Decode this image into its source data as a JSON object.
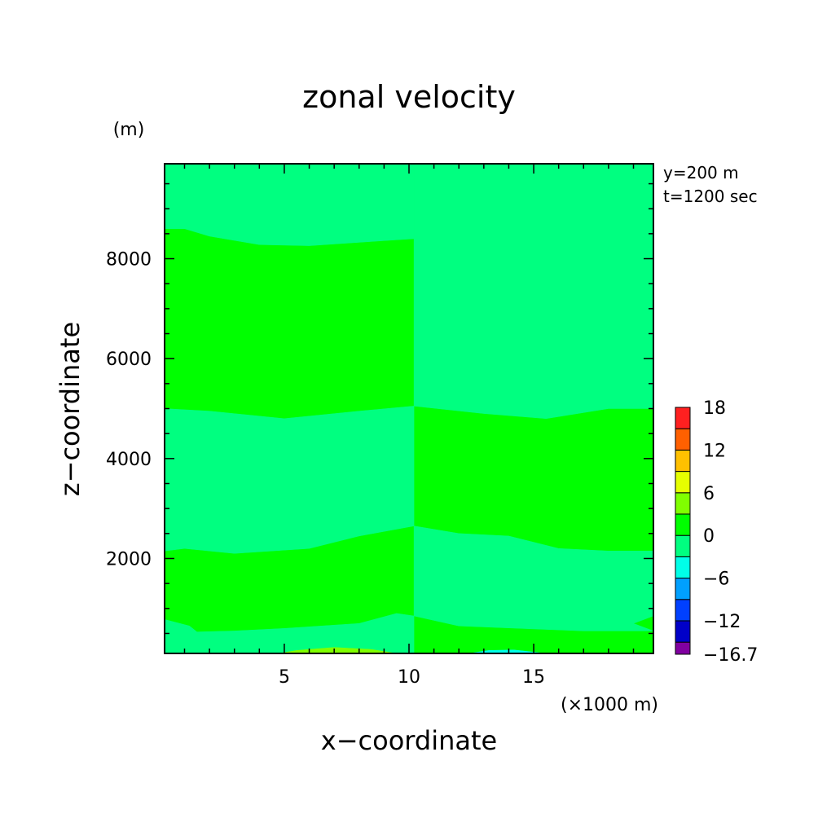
{
  "chart_data": {
    "type": "heatmap",
    "title": "zonal velocity",
    "xlabel": "x−coordinate",
    "ylabel": "z−coordinate",
    "x_unit": "(×1000 m)",
    "y_unit": "(m)",
    "annotations": [
      "y=200 m",
      "t=1200 sec"
    ],
    "xlim": [
      0.2,
      19.8
    ],
    "ylim": [
      100,
      9900
    ],
    "x_ticks": [
      "5",
      "10",
      "15"
    ],
    "y_ticks": [
      "2000",
      "4000",
      "6000",
      "8000"
    ],
    "x_tick_values": [
      5,
      10,
      15
    ],
    "y_tick_values": [
      2000,
      4000,
      6000,
      8000
    ],
    "colorbar": {
      "levels": [
        -16.7,
        -15,
        -12,
        -9,
        -6,
        -3,
        0,
        3,
        6,
        9,
        12,
        15,
        18
      ],
      "labels": [
        "18",
        "12",
        "6",
        "0",
        "−6",
        "−12",
        "−16.7"
      ],
      "label_values": [
        18,
        12,
        6,
        0,
        -6,
        -12,
        -16.7
      ],
      "colors": [
        "#8000a0",
        "#0000c8",
        "#0040ff",
        "#00a0ff",
        "#00ffe8",
        "#00ff80",
        "#00ff00",
        "#80ff00",
        "#e6ff00",
        "#ffc000",
        "#ff6000",
        "#ff2020"
      ]
    },
    "field": {
      "background_range": "0 to 3",
      "regions": [
        {
          "range": "-3 to 0",
          "points": [
            [
              0.2,
              9900
            ],
            [
              10.2,
              9900
            ],
            [
              10.2,
              8400
            ],
            [
              9,
              8360
            ],
            [
              6,
              8260
            ],
            [
              4,
              8280
            ],
            [
              2,
              8450
            ],
            [
              1,
              8600
            ],
            [
              0.2,
              8600
            ]
          ]
        },
        {
          "range": "-3 to 0",
          "points": [
            [
              10.2,
              9900
            ],
            [
              19.8,
              9900
            ],
            [
              19.8,
              5000
            ],
            [
              18,
              5000
            ],
            [
              15.5,
              4800
            ],
            [
              13,
              4900
            ],
            [
              10.2,
              5050
            ]
          ]
        },
        {
          "range": "-3 to 0",
          "points": [
            [
              0.2,
              5000
            ],
            [
              0.2,
              2150
            ],
            [
              1,
              2200
            ],
            [
              3,
              2100
            ],
            [
              6,
              2200
            ],
            [
              8,
              2450
            ],
            [
              10.2,
              2650
            ],
            [
              10.2,
              5050
            ],
            [
              8,
              4950
            ],
            [
              5,
              4800
            ],
            [
              2,
              4950
            ]
          ]
        },
        {
          "range": "-3 to 0",
          "points": [
            [
              10.2,
              2650
            ],
            [
              12,
              2500
            ],
            [
              14,
              2450
            ],
            [
              16,
              2200
            ],
            [
              18,
              2150
            ],
            [
              19.8,
              2150
            ],
            [
              19.8,
              850
            ],
            [
              19,
              700
            ],
            [
              19.8,
              550
            ],
            [
              17,
              550
            ],
            [
              12,
              650
            ],
            [
              10.2,
              850
            ]
          ]
        },
        {
          "range": "-3 to 0",
          "points": [
            [
              0.2,
              100
            ],
            [
              10.2,
              100
            ],
            [
              10.2,
              850
            ],
            [
              9.5,
              900
            ],
            [
              8,
              700
            ],
            [
              5,
              600
            ],
            [
              3,
              550
            ],
            [
              1.5,
              530
            ],
            [
              1.2,
              650
            ],
            [
              0.2,
              780
            ]
          ]
        },
        {
          "range": "3 to 6",
          "points": [
            [
              4.8,
              100
            ],
            [
              5.5,
              160
            ],
            [
              7,
              220
            ],
            [
              8.5,
              180
            ],
            [
              9.5,
              100
            ]
          ]
        },
        {
          "range": "-6 to -3",
          "points": [
            [
              12.4,
              100
            ],
            [
              13.2,
              160
            ],
            [
              14.2,
              170
            ],
            [
              15.5,
              100
            ]
          ]
        }
      ]
    }
  }
}
